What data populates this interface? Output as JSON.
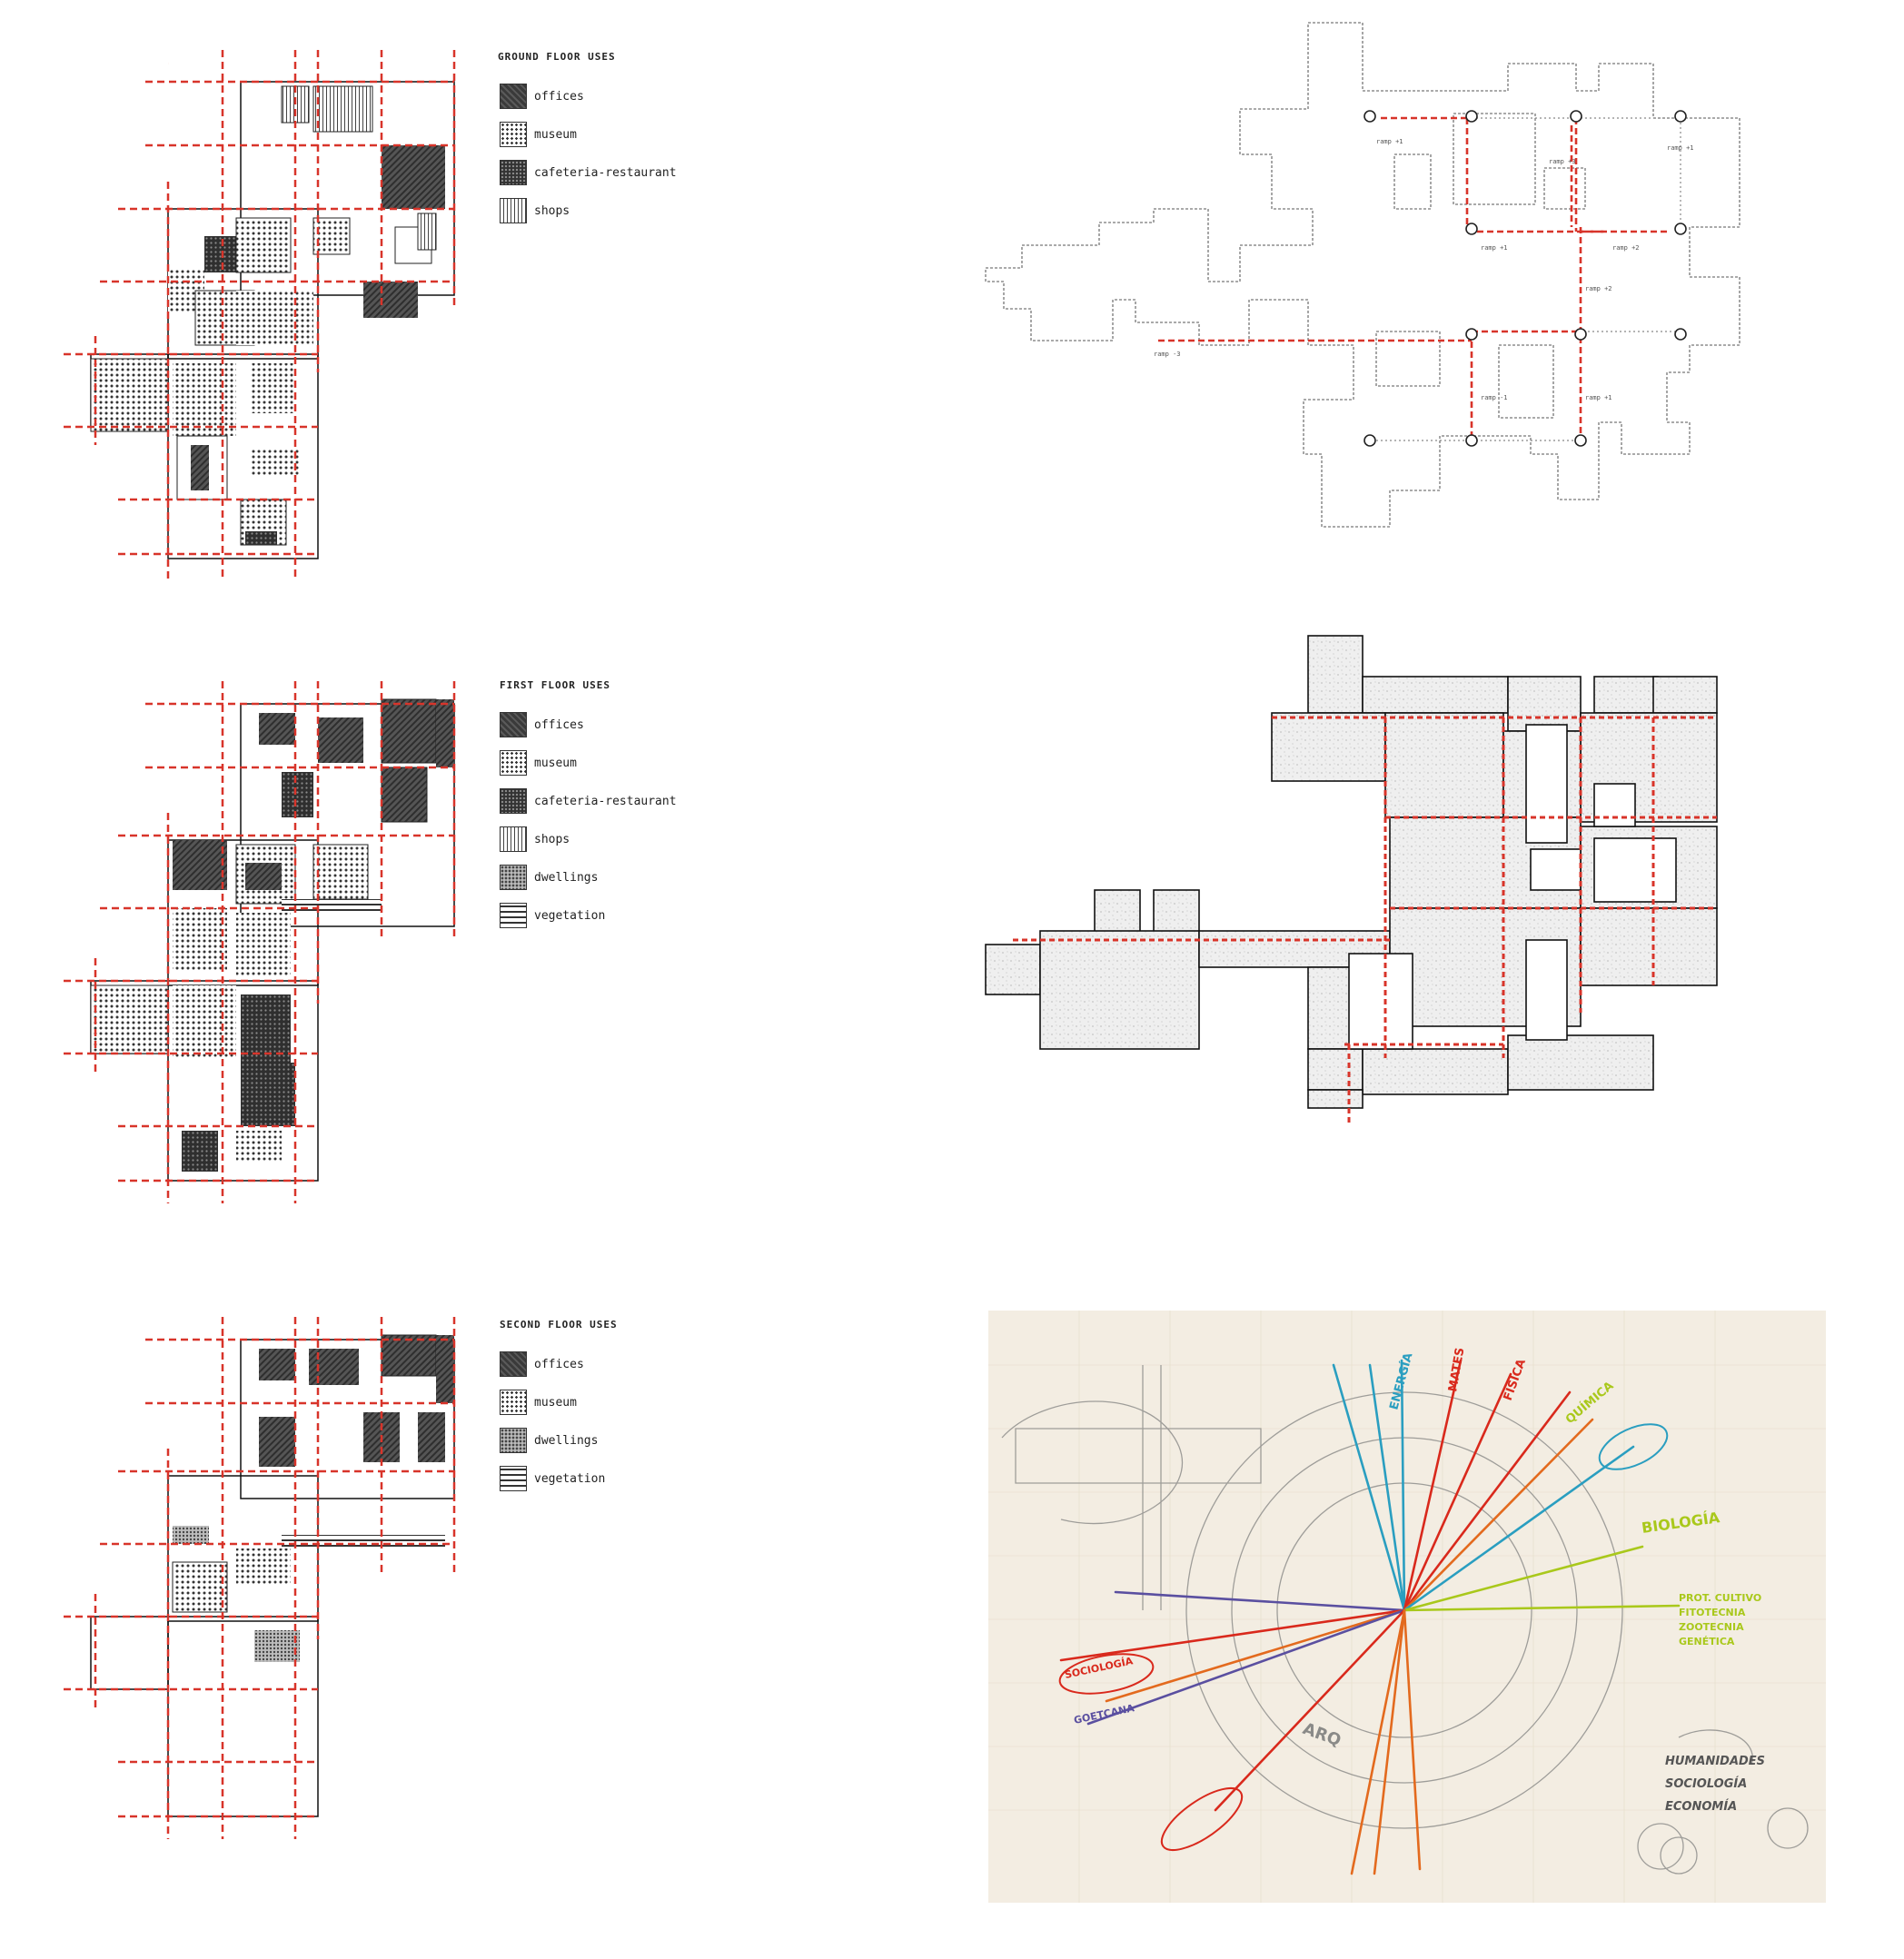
{
  "legends": [
    {
      "title": "GROUND FLOOR USES",
      "items": [
        {
          "label": "offices",
          "pattern": "offices"
        },
        {
          "label": "museum",
          "pattern": "museum"
        },
        {
          "label": "cafeteria-restaurant",
          "pattern": "cafe"
        },
        {
          "label": "shops",
          "pattern": "shops"
        }
      ]
    },
    {
      "title": "FIRST FLOOR USES",
      "items": [
        {
          "label": "offices",
          "pattern": "offices"
        },
        {
          "label": "museum",
          "pattern": "museum"
        },
        {
          "label": "cafeteria-restaurant",
          "pattern": "cafe"
        },
        {
          "label": "shops",
          "pattern": "shops"
        },
        {
          "label": "dwellings",
          "pattern": "dwell"
        },
        {
          "label": "vegetation",
          "pattern": "veg"
        }
      ]
    },
    {
      "title": "SECOND FLOOR USES",
      "items": [
        {
          "label": "offices",
          "pattern": "offices"
        },
        {
          "label": "museum",
          "pattern": "museum"
        },
        {
          "label": "dwellings",
          "pattern": "dwell"
        },
        {
          "label": "vegetation",
          "pattern": "veg"
        }
      ]
    }
  ],
  "ramps": {
    "labels": [
      "ramp +1",
      "ramp +1",
      "ramp +2",
      "ramp -3",
      "ramp +1",
      "ramp +3",
      "ramp +2",
      "ramp -1",
      "ramp +1"
    ]
  },
  "sketch": {
    "labels": [
      "ENERGÍA",
      "MATES",
      "FÍSICA",
      "QUÍMICA",
      "BIOLOGÍA",
      "SOCIOLOGÍA",
      "GOETCANA",
      "ARQ",
      "HUMANIDADES",
      "SOCIOLOGÍA",
      "ECONOMÍA",
      "PROT. CULTIVO",
      "FITOTECNIA",
      "ZOOTECNIA",
      "GENÉTICA"
    ],
    "colors": {
      "red": "#d9291c",
      "orange": "#e36a1e",
      "blue": "#2a9ec0",
      "lime": "#a9c81b",
      "purple": "#5a4fa0",
      "pencil": "#8a8a88",
      "paper": "#f3ede2"
    }
  }
}
